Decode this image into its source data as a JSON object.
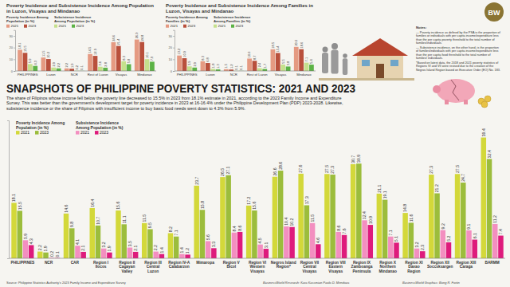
{
  "chart_data": [
    {
      "type": "bar",
      "title": "Poverty Incidence and Subsistence Incidence Among Population in Luzon, Visayas and Mindanao",
      "categories": [
        "PHILIPPINES",
        "Luzon",
        "NCR",
        "Rest of Luzon",
        "Visayas",
        "Mindanao"
      ],
      "series": [
        {
          "name": "2021",
          "group": "Poverty Incidence Among Population (in %)",
          "color": "#e59a82",
          "values": [
            18.1,
            11.5,
            2.2,
            14.5,
            24.6,
            26.9
          ]
        },
        {
          "name": "2023",
          "group": "Poverty Incidence Among Population (in %)",
          "color": "#b9503c",
          "values": [
            15.5,
            10.2,
            1.9,
            12.9,
            21.4,
            24.8
          ]
        },
        {
          "name": "2021",
          "group": "Subsistence Incidence Among Population (in %)",
          "color": "#c5e08c",
          "values": [
            5.9,
            2.9,
            0.2,
            3.6,
            8.3,
            10.1
          ]
        },
        {
          "name": "2023",
          "group": "Subsistence Incidence Among Population (in %)",
          "color": "#5cb346",
          "values": [
            4.3,
            2.2,
            0.1,
            2.8,
            5.8,
            7.9
          ]
        }
      ],
      "ylim": [
        0,
        35
      ],
      "yticks": [
        0,
        10,
        20,
        30
      ],
      "grid": false,
      "data_labels": true
    },
    {
      "type": "bar",
      "title": "Poverty Incidence and Subsistence Incidence Among Families in Luzon, Visayas and Mindanao",
      "categories": [
        "PHILIPPINES",
        "Luzon",
        "NCR",
        "Rest of Luzon",
        "Visayas",
        "Mindanao"
      ],
      "series": [
        {
          "name": "2021",
          "group": "Poverty Incidence Among Families (in %)",
          "color": "#e59a82",
          "values": [
            13.2,
            8.3,
            1.5,
            10.6,
            18.5,
            20.6
          ]
        },
        {
          "name": "2023",
          "group": "Poverty Incidence Among Families (in %)",
          "color": "#b9503c",
          "values": [
            10.9,
            6.8,
            1.2,
            8.7,
            15.4,
            18.6
          ]
        },
        {
          "name": "2021",
          "group": "Subsistence Incidence Among Families (in %)",
          "color": "#c5e08c",
          "values": [
            3.9,
            1.8,
            0.1,
            2.4,
            5.5,
            7.1
          ]
        },
        {
          "name": "2023",
          "group": "Subsistence Incidence Among Families (in %)",
          "color": "#5cb346",
          "values": [
            2.9,
            1.3,
            0.1,
            1.7,
            3.8,
            5.4
          ]
        }
      ],
      "ylim": [
        0,
        35
      ],
      "yticks": [
        0,
        10,
        20,
        30
      ],
      "grid": false,
      "data_labels": true
    },
    {
      "type": "bar",
      "categories": [
        "PHILIPPINES",
        "NCR",
        "CAR",
        "Region I Ilocos",
        "Region II Cagayan Valley",
        "Region III Central Luzon",
        "Region IV-A Calabarzon",
        "Mimaropa",
        "Region V Bicol",
        "Region VI Western Visayas",
        "Negros Island Region*",
        "Region VII Central Visayas",
        "Region VIII Eastern Visayas",
        "Region IX Zamboanga Peninsula",
        "Region X Northern Mindanao",
        "Region XI Davao Region",
        "Region XII Soccsksargen",
        "Region XIII Caraga",
        "BARMM"
      ],
      "series": [
        {
          "name": "2021",
          "group": "Poverty Incidence Among Population (in %)",
          "color": "#d3d83a",
          "values": [
            18.1,
            2.2,
            14.6,
            16.4,
            15.6,
            11.5,
            8.2,
            23.7,
            26.5,
            17.2,
            26.6,
            27.6,
            27.5,
            30.7,
            21.1,
            14.8,
            27.3,
            27.5,
            39.4
          ]
        },
        {
          "name": "2023",
          "group": "Poverty Incidence Among Population (in %)",
          "color": "#9cbd3c",
          "values": [
            15.5,
            1.9,
            9.8,
            10.7,
            11.1,
            9.5,
            7.1,
            15.8,
            27.1,
            15.6,
            28.6,
            17.3,
            27.3,
            30.9,
            19.1,
            11.6,
            21.2,
            24.7,
            32.4
          ]
        },
        {
          "name": "2021",
          "group": "Subsistence Incidence Among Population (in %)",
          "color": "#f38fc0",
          "values": [
            5.9,
            0.2,
            4.1,
            3.2,
            3.5,
            2.2,
            1.4,
            5.6,
            8.4,
            4.5,
            10.4,
            11.5,
            8.6,
            12.4,
            7.1,
            3.2,
            9.2,
            9.1,
            11.2
          ]
        },
        {
          "name": "2023",
          "group": "Subsistence Incidence Among Population (in %)",
          "color": "#de1b7c",
          "values": [
            4.3,
            0.1,
            2.1,
            1.9,
            2.1,
            1.4,
            1.2,
            3.3,
            8.6,
            3.1,
            10.2,
            4.6,
            7.6,
            10.9,
            5.1,
            2.3,
            5.2,
            6.1,
            7.4
          ]
        }
      ],
      "ylim": [
        0,
        45
      ],
      "grid": false,
      "tick_labels": false,
      "data_labels": true
    }
  ],
  "header": {
    "title": "SNAPSHOTS OF PHILIPPINE POVERTY STATISTICS: 2021 AND 2023",
    "body": "The share of Filipinos whose income fell below the poverty line decreased to 15.5% in 2023 from 18.1% estimate in 2021, according to the 2023 Family Income and Expenditure Survey. This was better than the government's development target for poverty incidence in 2023 at 16-16.4% under the Philippine Development Plan (PDP) 2023-2028. Likewise, subsistence incidence or the share of Filipinos with insufficient income to buy basic food needs went down to 4.3% from 5.9%."
  },
  "notes": {
    "title": "Notes:",
    "items": [
      "— Poverty incidence as defined by the PSA is the proportion of families or individuals with per capita income/expenditure less than the per capita poverty threshold to the total number of families/individuals.",
      "— Subsistence incidence, on the other hand, is the proportion of families/individuals with per capita income/expenditure less than the per capita food threshold to the total number of families/ individuals.",
      "*Based on latest data, the 2018 and 2021 poverty statistics of Regions VI and VII were revised due to the creation of the Negros Island Region based on Executive Order (EO) No. 183."
    ]
  },
  "credits": {
    "source": "Source: Philippine Statistics Authority's 2023 Family Income and Expenditure Survey",
    "research": "BusinessWorld Research: Kara Kassmian Paolo D. Mendoza",
    "graphics": "BusinessWorld Graphics: Bong R. Fortin"
  },
  "logo": "BW"
}
